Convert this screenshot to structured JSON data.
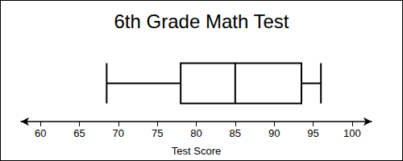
{
  "chart_data": {
    "type": "boxplot",
    "title": "6th Grade Math Test",
    "x_label": "Test Score",
    "orientation": "horizontal",
    "color": "#000000",
    "box": {
      "min": 68.5,
      "q1": 78,
      "median": 85,
      "q3": 93.5,
      "max": 96
    },
    "xlim": [
      57.5,
      102.5
    ],
    "xticks": [
      60,
      65,
      70,
      75,
      80,
      85,
      90,
      95,
      100
    ],
    "grid": false
  }
}
